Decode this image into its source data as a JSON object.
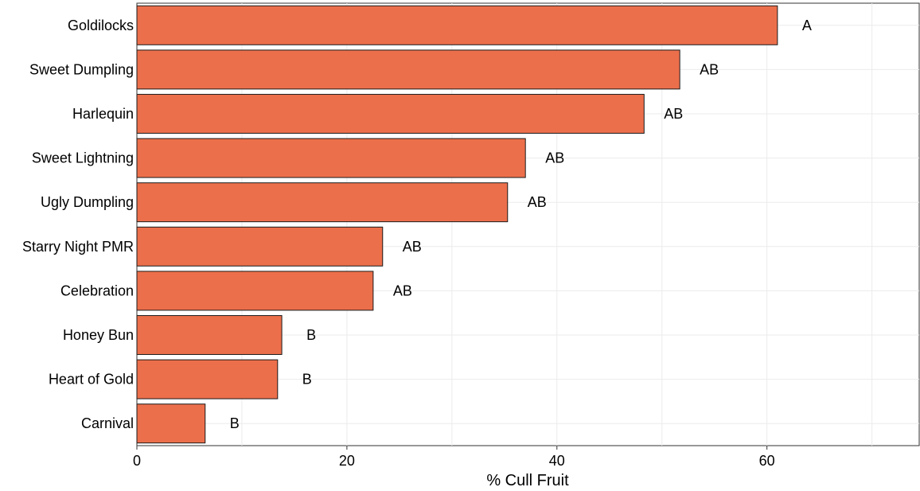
{
  "chart_data": {
    "type": "bar",
    "orientation": "horizontal",
    "categories": [
      "Goldilocks",
      "Sweet Dumpling",
      "Harlequin",
      "Sweet Lightning",
      "Ugly Dumpling",
      "Starry Night PMR",
      "Celebration",
      "Honey Bun",
      "Heart of Gold",
      "Carnival"
    ],
    "values": [
      61,
      51.7,
      48.3,
      37,
      35.3,
      23.4,
      22.5,
      13.8,
      13.4,
      6.5
    ],
    "significance_letters": [
      "A",
      "AB",
      "AB",
      "AB",
      "AB",
      "AB",
      "AB",
      "B",
      "B",
      "B"
    ],
    "xlabel": "% Cull Fruit",
    "ylabel": "",
    "title": "",
    "xlim": [
      0,
      74.5
    ],
    "xticks": [
      0,
      20,
      40,
      60
    ],
    "grid": true,
    "colors": {
      "bar_fill": "#ec6f4b",
      "bar_stroke": "#1a1a1a",
      "grid": "#ebebeb"
    }
  }
}
